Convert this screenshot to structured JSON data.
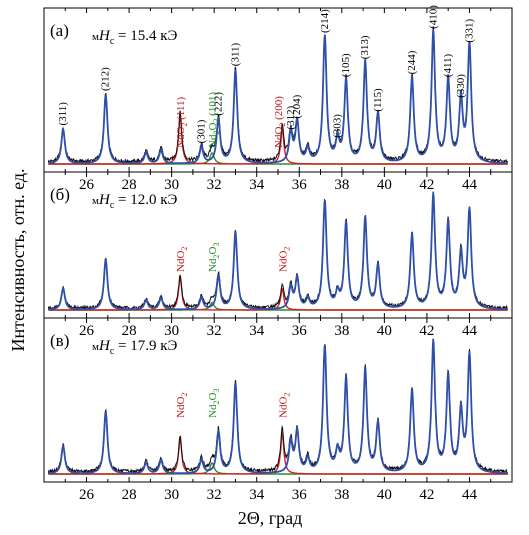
{
  "chart_data": {
    "type": "line",
    "xlabel": "2Θ, град",
    "ylabel": "Интенсивность, отн. ед.",
    "xlim": [
      24,
      46
    ],
    "x_ticks": [
      26,
      28,
      30,
      32,
      34,
      36,
      38,
      40,
      42,
      44
    ],
    "colors": {
      "experiment": "#111111",
      "fit": "#2f4fa8",
      "NdO": "#d42020",
      "Nd2O3": "#2a8f2a"
    },
    "panels": [
      {
        "label": "(а)",
        "field_prefix": "м",
        "field_var": "H",
        "field_sub": "c",
        "field_value": "= 15.4 кЭ",
        "fit_peaks": [
          {
            "hkl": "(311)",
            "x": 24.9,
            "h": 0.25
          },
          {
            "hkl": "(212)",
            "x": 26.9,
            "h": 0.5
          },
          {
            "hkl": "",
            "x": 28.8,
            "h": 0.08
          },
          {
            "hkl": "",
            "x": 29.5,
            "h": 0.1
          },
          {
            "hkl": "(301)",
            "x": 31.4,
            "h": 0.12
          },
          {
            "hkl": "(222)",
            "x": 32.2,
            "h": 0.32
          },
          {
            "hkl": "(311)",
            "x": 33.0,
            "h": 0.68
          },
          {
            "hkl": "(312)",
            "x": 35.6,
            "h": 0.22
          },
          {
            "hkl": "(204)",
            "x": 35.9,
            "h": 0.3
          },
          {
            "hkl": "",
            "x": 36.4,
            "h": 0.1
          },
          {
            "hkl": "(214)",
            "x": 37.2,
            "h": 0.92
          },
          {
            "hkl": "(303)",
            "x": 37.8,
            "h": 0.16
          },
          {
            "hkl": "(105)",
            "x": 38.2,
            "h": 0.6
          },
          {
            "hkl": "(313)",
            "x": 39.1,
            "h": 0.73
          },
          {
            "hkl": "(115)",
            "x": 39.7,
            "h": 0.35
          },
          {
            "hkl": "(244)",
            "x": 41.3,
            "h": 0.62
          },
          {
            "hkl": "(410)",
            "x": 42.3,
            "h": 0.95
          },
          {
            "hkl": "(411)",
            "x": 43.0,
            "h": 0.6
          },
          {
            "hkl": "(330)",
            "x": 43.6,
            "h": 0.45
          },
          {
            "hkl": "(331)",
            "x": 44.0,
            "h": 0.85
          }
        ],
        "NdO_peaks": [
          {
            "x": 30.4,
            "h": 0.36
          },
          {
            "x": 35.2,
            "h": 0.26
          }
        ],
        "Nd2O3_peaks": [
          {
            "x": 31.9,
            "h": 0.08
          }
        ],
        "annotations": [
          {
            "text": "NdO",
            "sub": "2",
            "suffix": " (111)",
            "color": "red",
            "x": 30.4
          },
          {
            "text": "Nd",
            "sub": "2",
            "mid": "O",
            "sub2": "3",
            "suffix": " (101)",
            "color": "green",
            "x": 31.9
          },
          {
            "text": "NdO",
            "sub": "2",
            "suffix": " (200)",
            "color": "red",
            "x": 35.0
          }
        ]
      },
      {
        "label": "(б)",
        "field_prefix": "м",
        "field_var": "H",
        "field_sub": "c",
        "field_value": "= 12.0 кЭ",
        "fit_peaks": [
          {
            "x": 24.9,
            "h": 0.18
          },
          {
            "x": 26.9,
            "h": 0.42
          },
          {
            "x": 28.8,
            "h": 0.08
          },
          {
            "x": 29.5,
            "h": 0.1
          },
          {
            "x": 31.4,
            "h": 0.1
          },
          {
            "x": 32.2,
            "h": 0.28
          },
          {
            "x": 33.0,
            "h": 0.65
          },
          {
            "x": 35.6,
            "h": 0.18
          },
          {
            "x": 35.9,
            "h": 0.26
          },
          {
            "x": 36.4,
            "h": 0.08
          },
          {
            "x": 37.2,
            "h": 0.9
          },
          {
            "x": 37.8,
            "h": 0.12
          },
          {
            "x": 38.2,
            "h": 0.72
          },
          {
            "x": 39.1,
            "h": 0.76
          },
          {
            "x": 39.7,
            "h": 0.36
          },
          {
            "x": 41.3,
            "h": 0.62
          },
          {
            "x": 42.3,
            "h": 0.95
          },
          {
            "x": 43.0,
            "h": 0.72
          },
          {
            "x": 43.6,
            "h": 0.45
          },
          {
            "x": 44.0,
            "h": 0.82
          }
        ],
        "NdO_peaks": [
          {
            "x": 30.4,
            "h": 0.28
          },
          {
            "x": 35.2,
            "h": 0.18
          }
        ],
        "Nd2O3_peaks": [
          {
            "x": 31.9,
            "h": 0.06
          }
        ],
        "annotations": [
          {
            "text": "NdO",
            "sub": "2",
            "suffix": "",
            "color": "red",
            "x": 30.4
          },
          {
            "text": "Nd",
            "sub": "2",
            "mid": "O",
            "sub2": "3",
            "suffix": "",
            "color": "green",
            "x": 31.9
          },
          {
            "text": "NdO",
            "sub": "2",
            "suffix": "",
            "color": "red",
            "x": 35.2
          }
        ]
      },
      {
        "label": "(в)",
        "field_prefix": "м",
        "field_var": "H",
        "field_sub": "c",
        "field_value": "= 17.9 кЭ",
        "fit_peaks": [
          {
            "x": 24.9,
            "h": 0.2
          },
          {
            "x": 26.9,
            "h": 0.45
          },
          {
            "x": 28.8,
            "h": 0.08
          },
          {
            "x": 29.5,
            "h": 0.1
          },
          {
            "x": 31.4,
            "h": 0.1
          },
          {
            "x": 32.2,
            "h": 0.3
          },
          {
            "x": 33.0,
            "h": 0.66
          },
          {
            "x": 35.6,
            "h": 0.22
          },
          {
            "x": 35.9,
            "h": 0.3
          },
          {
            "x": 36.4,
            "h": 0.1
          },
          {
            "x": 37.2,
            "h": 0.92
          },
          {
            "x": 37.8,
            "h": 0.14
          },
          {
            "x": 38.2,
            "h": 0.68
          },
          {
            "x": 39.1,
            "h": 0.75
          },
          {
            "x": 39.7,
            "h": 0.36
          },
          {
            "x": 41.3,
            "h": 0.6
          },
          {
            "x": 42.3,
            "h": 0.95
          },
          {
            "x": 43.0,
            "h": 0.7
          },
          {
            "x": 43.6,
            "h": 0.44
          },
          {
            "x": 44.0,
            "h": 0.85
          }
        ],
        "NdO_peaks": [
          {
            "x": 30.4,
            "h": 0.26
          },
          {
            "x": 35.2,
            "h": 0.3
          }
        ],
        "Nd2O3_peaks": [
          {
            "x": 31.9,
            "h": 0.08
          }
        ],
        "annotations": [
          {
            "text": "NdO",
            "sub": "2",
            "suffix": "",
            "color": "red",
            "x": 30.4
          },
          {
            "text": "Nd",
            "sub": "2",
            "mid": "O",
            "sub2": "3",
            "suffix": "",
            "color": "green",
            "x": 31.9
          },
          {
            "text": "NdO",
            "sub": "2",
            "suffix": "",
            "color": "red",
            "x": 35.2
          }
        ]
      }
    ]
  }
}
